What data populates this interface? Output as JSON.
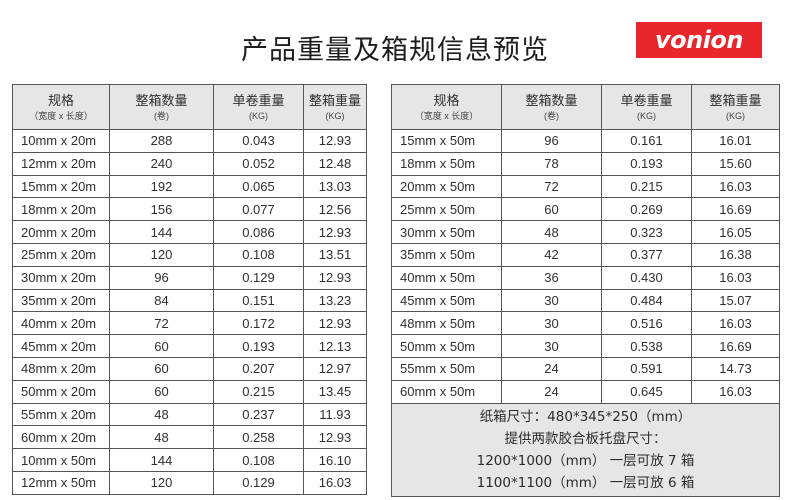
{
  "page_title": "产品重量及箱规信息预览",
  "brand": {
    "logo_text": "vonion",
    "logo_color": "#e8262b"
  },
  "columns": {
    "spec": "规格",
    "spec_sub": "（宽度 x 长度）",
    "box_qty": "整箱数量",
    "box_qty_sub": "(卷)",
    "unit_weight": "单卷重量",
    "unit_weight_sub": "(KG)",
    "box_weight": "整箱重量",
    "box_weight_sub": "(KG)"
  },
  "left_rows": [
    [
      "10mm x 20m",
      "288",
      "0.043",
      "12.93"
    ],
    [
      "12mm x 20m",
      "240",
      "0.052",
      "12.48"
    ],
    [
      "15mm x 20m",
      "192",
      "0.065",
      "13.03"
    ],
    [
      "18mm x 20m",
      "156",
      "0.077",
      "12.56"
    ],
    [
      "20mm x 20m",
      "144",
      "0.086",
      "12.93"
    ],
    [
      "25mm x 20m",
      "120",
      "0.108",
      "13.51"
    ],
    [
      "30mm x 20m",
      "96",
      "0.129",
      "12.93"
    ],
    [
      "35mm x 20m",
      "84",
      "0.151",
      "13.23"
    ],
    [
      "40mm x 20m",
      "72",
      "0.172",
      "12.93"
    ],
    [
      "45mm x 20m",
      "60",
      "0.193",
      "12.13"
    ],
    [
      "48mm x 20m",
      "60",
      "0.207",
      "12.97"
    ],
    [
      "50mm x 20m",
      "60",
      "0.215",
      "13.45"
    ],
    [
      "55mm x 20m",
      "48",
      "0.237",
      "11.93"
    ],
    [
      "60mm x 20m",
      "48",
      "0.258",
      "12.93"
    ],
    [
      "10mm x 50m",
      "144",
      "0.108",
      "16.10"
    ],
    [
      "12mm x 50m",
      "120",
      "0.129",
      "16.03"
    ]
  ],
  "right_rows": [
    [
      "15mm x 50m",
      "96",
      "0.161",
      "16.01"
    ],
    [
      "18mm x 50m",
      "78",
      "0.193",
      "15.60"
    ],
    [
      "20mm x 50m",
      "72",
      "0.215",
      "16.03"
    ],
    [
      "25mm x 50m",
      "60",
      "0.269",
      "16.69"
    ],
    [
      "30mm x 50m",
      "48",
      "0.323",
      "16.05"
    ],
    [
      "35mm x 50m",
      "42",
      "0.377",
      "16.38"
    ],
    [
      "40mm x 50m",
      "36",
      "0.430",
      "16.03"
    ],
    [
      "45mm x 50m",
      "30",
      "0.484",
      "15.07"
    ],
    [
      "48mm x 50m",
      "30",
      "0.516",
      "16.03"
    ],
    [
      "50mm x 50m",
      "30",
      "0.538",
      "16.69"
    ],
    [
      "55mm x 50m",
      "24",
      "0.591",
      "14.73"
    ],
    [
      "60mm x 50m",
      "24",
      "0.645",
      "16.03"
    ]
  ],
  "notes": [
    "纸箱尺寸：480*345*250（mm）",
    "提供两款胶合板托盘尺寸：",
    "1200*1000（mm） 一层可放 7 箱",
    "1100*1100（mm） 一层可放 6 箱"
  ]
}
